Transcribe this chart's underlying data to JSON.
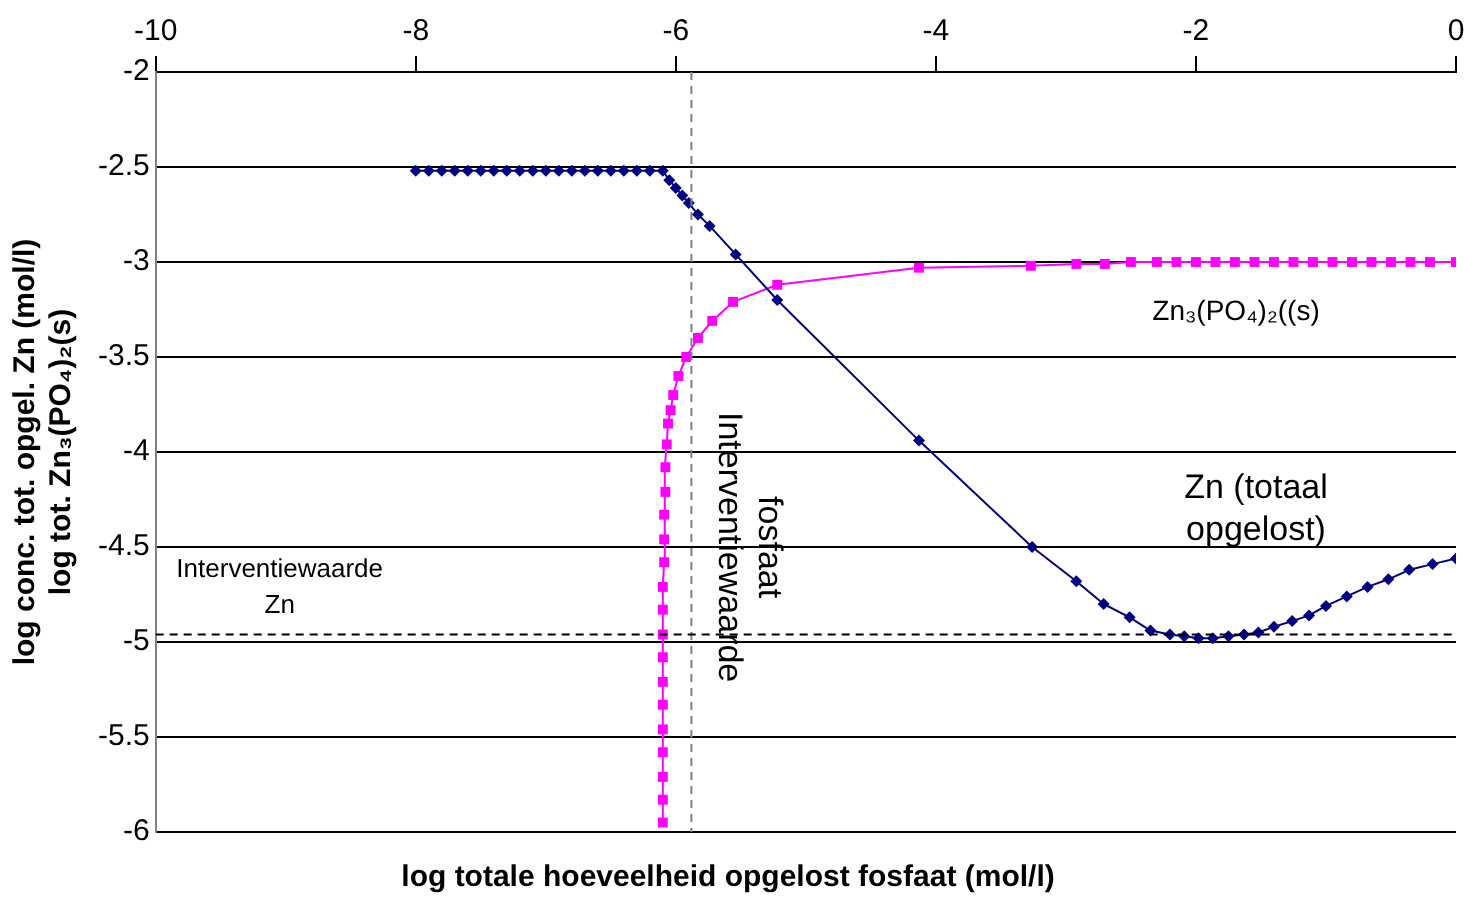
{
  "chart_data": {
    "type": "line",
    "xlabel": "log totale hoeveelheid opgelost fosfaat (mol/l)",
    "ylabel": [
      "log conc. tot. opgel. Zn (mol/l)",
      "log tot. Zn₃(PO₄)₂(s)"
    ],
    "xlim": [
      -10,
      0
    ],
    "xticks": [
      -10,
      -8,
      -6,
      -4,
      -2,
      0
    ],
    "ylim": [
      -6,
      -2
    ],
    "yticks": [
      -2,
      -2.5,
      -3,
      -3.5,
      -4,
      -4.5,
      -5,
      -5.5,
      -6
    ],
    "grid": "y",
    "legend": false,
    "series": [
      {
        "name": "Zn (totaal opgelost)",
        "color": "#000080",
        "marker": "diamond",
        "x": [
          -8,
          -7.9,
          -7.8,
          -7.7,
          -7.6,
          -7.5,
          -7.4,
          -7.3,
          -7.2,
          -7.1,
          -7,
          -6.9,
          -6.8,
          -6.7,
          -6.6,
          -6.5,
          -6.4,
          -6.3,
          -6.2,
          -6.1,
          -6.05,
          -6,
          -5.95,
          -5.9,
          -5.83,
          -5.74,
          -5.54,
          -5.22,
          -4.13,
          -3.26,
          -2.92,
          -2.71,
          -2.51,
          -2.35,
          -2.2,
          -2.09,
          -1.98,
          -1.87,
          -1.75,
          -1.63,
          -1.52,
          -1.4,
          -1.26,
          -1.13,
          -1,
          -0.84,
          -0.68,
          -0.52,
          -0.36,
          -0.18,
          0
        ],
        "values": [
          -2.52,
          -2.52,
          -2.52,
          -2.52,
          -2.52,
          -2.52,
          -2.52,
          -2.52,
          -2.52,
          -2.52,
          -2.52,
          -2.52,
          -2.52,
          -2.52,
          -2.52,
          -2.52,
          -2.52,
          -2.52,
          -2.52,
          -2.52,
          -2.57,
          -2.61,
          -2.65,
          -2.69,
          -2.75,
          -2.81,
          -2.96,
          -3.2,
          -3.94,
          -4.5,
          -4.68,
          -4.8,
          -4.87,
          -4.94,
          -4.96,
          -4.97,
          -4.98,
          -4.98,
          -4.97,
          -4.96,
          -4.95,
          -4.92,
          -4.89,
          -4.86,
          -4.81,
          -4.76,
          -4.71,
          -4.67,
          -4.62,
          -4.59,
          -4.56
        ]
      },
      {
        "name": "Zn₃(PO₄)₂((s)",
        "color": "#ff00ff",
        "marker": "square",
        "x": [
          -6.1,
          -6.1,
          -6.1,
          -6.1,
          -6.1,
          -6.1,
          -6.1,
          -6.1,
          -6.1,
          -6.1,
          -6.1,
          -6.09,
          -6.09,
          -6.09,
          -6.08,
          -6.08,
          -6.07,
          -6.06,
          -6.04,
          -6.02,
          -5.98,
          -5.92,
          -5.83,
          -5.72,
          -5.56,
          -5.22,
          -4.13,
          -3.27,
          -2.92,
          -2.7,
          -2.5,
          -2.3,
          -2.15,
          -2,
          -1.85,
          -1.7,
          -1.55,
          -1.4,
          -1.25,
          -1.1,
          -0.95,
          -0.8,
          -0.65,
          -0.5,
          -0.35,
          -0.2,
          0
        ],
        "values": [
          -5.95,
          -5.83,
          -5.71,
          -5.58,
          -5.46,
          -5.33,
          -5.21,
          -5.08,
          -4.96,
          -4.83,
          -4.71,
          -4.58,
          -4.46,
          -4.33,
          -4.21,
          -4.08,
          -3.96,
          -3.85,
          -3.78,
          -3.7,
          -3.6,
          -3.5,
          -3.4,
          -3.31,
          -3.21,
          -3.12,
          -3.03,
          -3.02,
          -3.01,
          -3.01,
          -3,
          -3,
          -3,
          -3,
          -3,
          -3,
          -3,
          -3,
          -3,
          -3,
          -3,
          -3,
          -3,
          -3,
          -3,
          -3,
          -3
        ]
      }
    ],
    "ref_lines": [
      {
        "axis": "x",
        "value": -5.88,
        "label": "Interventiewaarde fosfaat",
        "color": "#808080",
        "line_style": "dashed"
      },
      {
        "axis": "y",
        "value": -4.96,
        "label": "Interventiewaarde Zn",
        "color": "#000000",
        "line_style": "dashed"
      }
    ]
  }
}
